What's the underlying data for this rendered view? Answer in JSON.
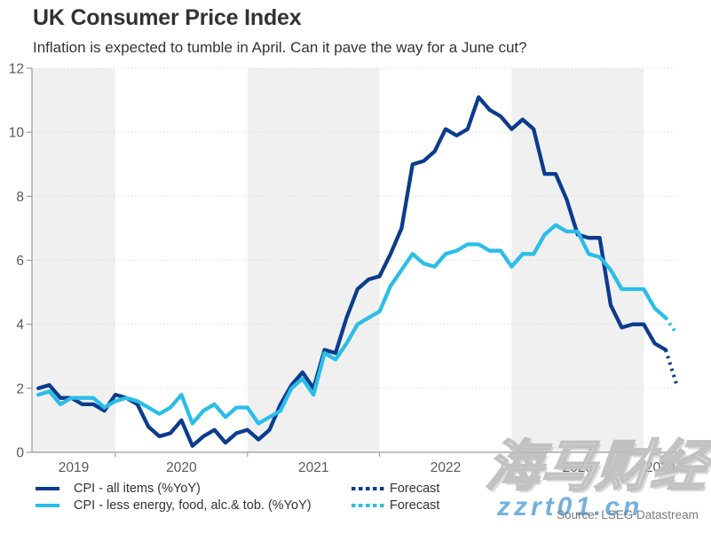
{
  "header": {
    "title": "UK Consumer Price Index",
    "subtitle": "Inflation is expected to tumble in April. Can it pave the way for a June cut?"
  },
  "source": "Source: LSEG Datastream",
  "watermark": {
    "cn_text": "海马财经",
    "url_text": "zzrt01.cn",
    "url_color": "#74b1df"
  },
  "legend": {
    "items": [
      {
        "label": "CPI - all items (%YoY)",
        "style": "solid",
        "color": "#0b3c8d"
      },
      {
        "label": "CPI - less energy, food, alc.& tob. (%YoY)",
        "style": "solid",
        "color": "#2bbde9"
      },
      {
        "label": "Forecast",
        "style": "dotted",
        "color": "#0b3c8d"
      },
      {
        "label": "Forecast",
        "style": "dotted",
        "color": "#2bbde9"
      }
    ]
  },
  "chart_data": {
    "type": "line",
    "title": "UK Consumer Price Index",
    "subtitle": "Inflation is expected to tumble in April. Can it pave the way for a June cut?",
    "x_unit": "month",
    "x_start": "2019-06",
    "x_end_solid": "2024-03",
    "x_end_forecast": "2024-04",
    "ylim": [
      0,
      12
    ],
    "yticks": [
      0,
      2,
      4,
      6,
      8,
      10,
      12
    ],
    "year_labels": [
      "2019",
      "2020",
      "2021",
      "2022",
      "2023",
      "2024"
    ],
    "shaded_years": [
      "2019",
      "2021",
      "2023"
    ],
    "grid": "dotted-horizontal",
    "legend_position": "bottom-left",
    "colors": {
      "band": "#f0f0f0",
      "grid": "#d4d4d4",
      "axis": "#9b9b9b",
      "tick_text": "#595959"
    },
    "series": [
      {
        "id": "cpi-all-items",
        "name": "CPI - all items (%YoY)",
        "color": "#0b3c8d",
        "values": [
          2.0,
          2.1,
          1.7,
          1.7,
          1.5,
          1.5,
          1.3,
          1.8,
          1.7,
          1.5,
          0.8,
          0.5,
          0.6,
          1.0,
          0.2,
          0.5,
          0.7,
          0.3,
          0.6,
          0.7,
          0.4,
          0.7,
          1.5,
          2.1,
          2.5,
          2.0,
          3.2,
          3.1,
          4.2,
          5.1,
          5.4,
          5.5,
          6.2,
          7.0,
          9.0,
          9.1,
          9.4,
          10.1,
          9.9,
          10.1,
          11.1,
          10.7,
          10.5,
          10.1,
          10.4,
          10.1,
          8.7,
          8.7,
          7.9,
          6.8,
          6.7,
          6.7,
          4.6,
          3.9,
          4.0,
          4.0,
          3.4,
          3.2
        ],
        "forecast_values": [
          2.1
        ]
      },
      {
        "id": "cpi-core",
        "name": "CPI - less energy, food, alc.& tob. (%YoY)",
        "color": "#2bbde9",
        "values": [
          1.8,
          1.9,
          1.5,
          1.7,
          1.7,
          1.7,
          1.4,
          1.6,
          1.7,
          1.6,
          1.4,
          1.2,
          1.4,
          1.8,
          0.9,
          1.3,
          1.5,
          1.1,
          1.4,
          1.4,
          0.9,
          1.1,
          1.3,
          2.0,
          2.3,
          1.8,
          3.1,
          2.9,
          3.4,
          4.0,
          4.2,
          4.4,
          5.2,
          5.7,
          6.2,
          5.9,
          5.8,
          6.2,
          6.3,
          6.5,
          6.5,
          6.3,
          6.3,
          5.8,
          6.2,
          6.2,
          6.8,
          7.1,
          6.9,
          6.9,
          6.2,
          6.1,
          5.7,
          5.1,
          5.1,
          5.1,
          4.5,
          4.2
        ],
        "forecast_values": [
          3.7
        ]
      }
    ]
  }
}
